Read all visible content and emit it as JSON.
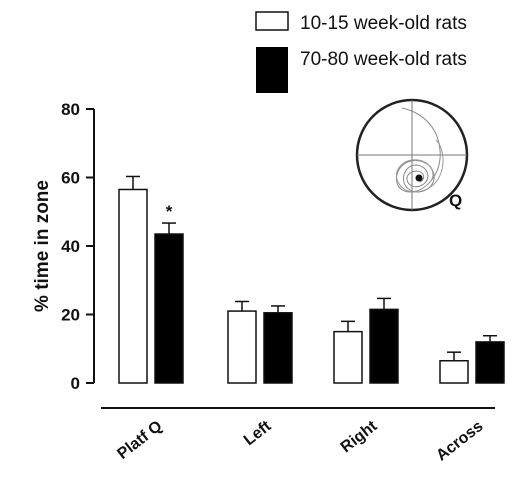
{
  "chart_data": {
    "type": "bar",
    "ylabel": "% time in zone",
    "ylim": [
      0,
      80
    ],
    "yticks": [
      "0",
      "20",
      "40",
      "60",
      "80"
    ],
    "categories": [
      "Platf Q",
      "Left",
      "Right",
      "Across"
    ],
    "series": [
      {
        "name": "10-15 week-old rats",
        "fill": "#ffffff",
        "values": [
          56.5,
          21.0,
          15.0,
          6.5
        ],
        "errors": [
          3.8,
          2.8,
          3.0,
          2.5
        ]
      },
      {
        "name": "70-80 week-old rats",
        "fill": "#000000",
        "values": [
          43.5,
          20.5,
          21.5,
          12.0
        ],
        "errors": [
          3.2,
          2.0,
          3.2,
          1.8
        ]
      }
    ],
    "annotations": [
      {
        "text": "*",
        "category": "Platf Q",
        "series": "70-80 week-old rats"
      }
    ],
    "inset": {
      "label": "Q"
    },
    "legend_position": "top-right",
    "grid": false
  }
}
